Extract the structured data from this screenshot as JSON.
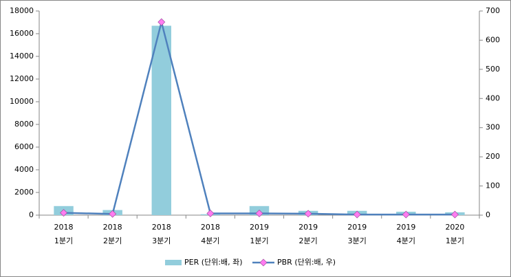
{
  "chart_data": {
    "type": "bar",
    "categories": [
      [
        "2018",
        "1분기"
      ],
      [
        "2018",
        "2분기"
      ],
      [
        "2018",
        "3분기"
      ],
      [
        "2018",
        "4분기"
      ],
      [
        "2019",
        "1분기"
      ],
      [
        "2019",
        "2분기"
      ],
      [
        "2019",
        "3분기"
      ],
      [
        "2019",
        "4분기"
      ],
      [
        "2020",
        "1분기"
      ]
    ],
    "series": [
      {
        "name": "PER (단위:배, 좌)",
        "type": "bar",
        "color": "#92cddc",
        "values": [
          800,
          450,
          16700,
          80,
          800,
          380,
          380,
          300,
          250
        ]
      },
      {
        "name": "PBR (단위:배, 우)",
        "type": "line",
        "axis": "y2",
        "color": "#4f81bd",
        "marker_color": "#ff7cf0",
        "values": [
          8,
          4,
          662,
          6,
          6,
          5,
          2,
          2,
          2
        ]
      }
    ],
    "ylim": [
      0,
      18000
    ],
    "yticks": [
      0,
      2000,
      4000,
      6000,
      8000,
      10000,
      12000,
      14000,
      16000,
      18000
    ],
    "y2lim": [
      0,
      700
    ],
    "y2ticks": [
      0,
      100,
      200,
      300,
      400,
      500,
      600,
      700
    ],
    "legend": "bottom"
  }
}
